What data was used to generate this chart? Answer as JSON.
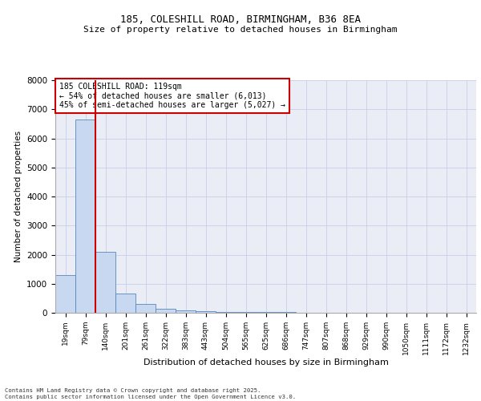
{
  "title_line1": "185, COLESHILL ROAD, BIRMINGHAM, B36 8EA",
  "title_line2": "Size of property relative to detached houses in Birmingham",
  "xlabel": "Distribution of detached houses by size in Birmingham",
  "ylabel": "Number of detached properties",
  "annotation_line1": "185 COLESHILL ROAD: 119sqm",
  "annotation_line2": "← 54% of detached houses are smaller (6,013)",
  "annotation_line3": "45% of semi-detached houses are larger (5,027) →",
  "footer_line1": "Contains HM Land Registry data © Crown copyright and database right 2025.",
  "footer_line2": "Contains public sector information licensed under the Open Government Licence v3.0.",
  "bin_labels": [
    "19sqm",
    "79sqm",
    "140sqm",
    "201sqm",
    "261sqm",
    "322sqm",
    "383sqm",
    "443sqm",
    "504sqm",
    "565sqm",
    "625sqm",
    "686sqm",
    "747sqm",
    "807sqm",
    "868sqm",
    "929sqm",
    "990sqm",
    "1050sqm",
    "1111sqm",
    "1172sqm",
    "1232sqm"
  ],
  "bar_heights": [
    1300,
    6650,
    2100,
    650,
    290,
    130,
    90,
    60,
    40,
    30,
    20,
    15,
    12,
    10,
    8,
    6,
    5,
    4,
    3,
    2,
    1
  ],
  "bar_color": "#c8d8f0",
  "bar_edge_color": "#5588bb",
  "vline_color": "#cc0000",
  "annotation_box_color": "#cc0000",
  "ylim": [
    0,
    8000
  ],
  "yticks": [
    0,
    1000,
    2000,
    3000,
    4000,
    5000,
    6000,
    7000,
    8000
  ],
  "grid_color": "#c8d0e8",
  "background_color": "#eaedf5",
  "title_fontsize": 9,
  "subtitle_fontsize": 8
}
